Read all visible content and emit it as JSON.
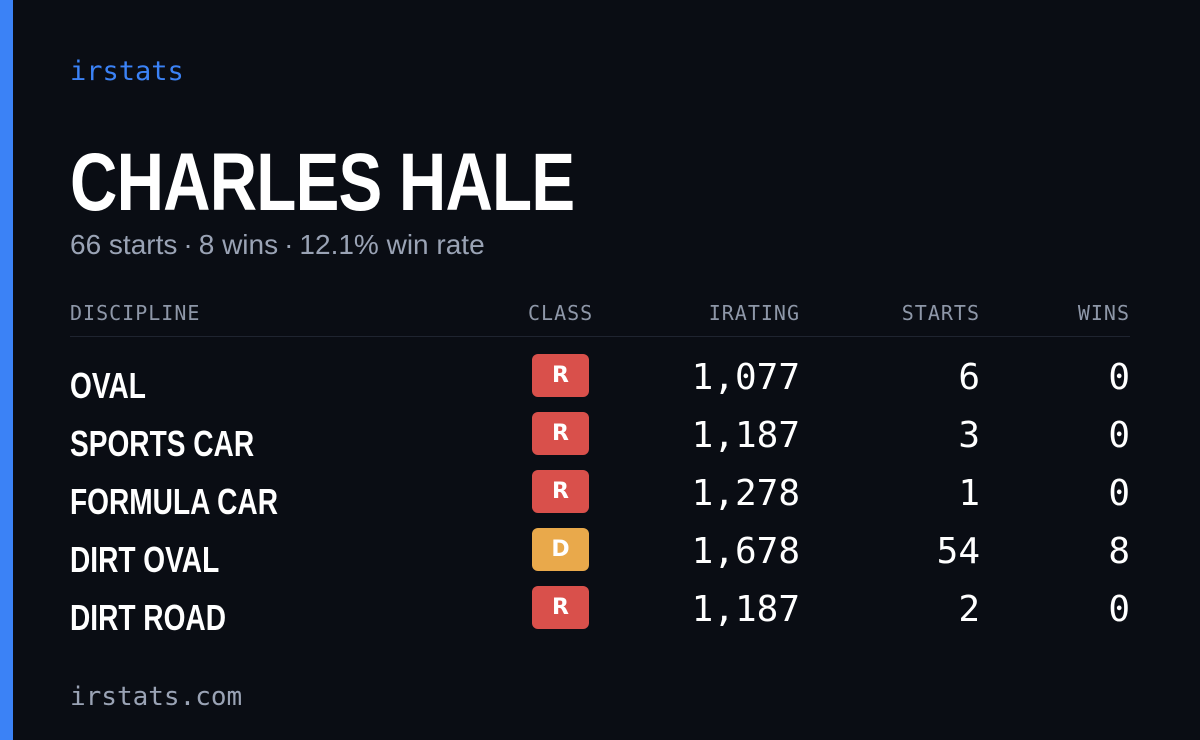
{
  "brand": "irstats",
  "driver": {
    "name": "CHARLES HALE"
  },
  "summary": {
    "starts": "66 starts",
    "wins": "8 wins",
    "win_rate": "12.1% win rate",
    "separator": "·"
  },
  "table": {
    "headers": {
      "discipline": "DISCIPLINE",
      "class": "CLASS",
      "irating": "IRATING",
      "starts": "STARTS",
      "wins": "WINS"
    },
    "rows": [
      {
        "discipline": "OVAL",
        "class": "R",
        "class_color": "#d9504b",
        "irating": "1,077",
        "starts": "6",
        "wins": "0"
      },
      {
        "discipline": "SPORTS CAR",
        "class": "R",
        "class_color": "#d9504b",
        "irating": "1,187",
        "starts": "3",
        "wins": "0"
      },
      {
        "discipline": "FORMULA CAR",
        "class": "R",
        "class_color": "#d9504b",
        "irating": "1,278",
        "starts": "1",
        "wins": "0"
      },
      {
        "discipline": "DIRT OVAL",
        "class": "D",
        "class_color": "#e9a94b",
        "irating": "1,678",
        "starts": "54",
        "wins": "8"
      },
      {
        "discipline": "DIRT ROAD",
        "class": "R",
        "class_color": "#d9504b",
        "irating": "1,187",
        "starts": "2",
        "wins": "0"
      }
    ]
  },
  "footer": {
    "url": "irstats.com"
  },
  "colors": {
    "accent": "#3b82f6",
    "background": "#0a0d14"
  }
}
